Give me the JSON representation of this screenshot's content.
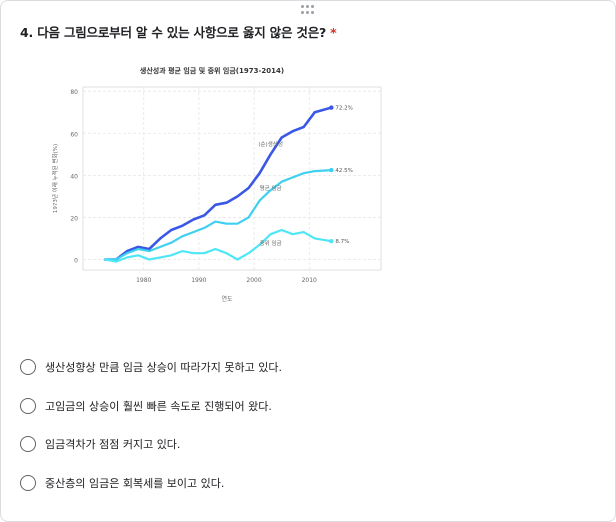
{
  "question": {
    "number_title": "4. 다음 그림으로부터 알 수 있는 사항으로 옳지 않은 것은?",
    "required_mark": "*"
  },
  "chart_data": {
    "type": "line",
    "title": "생산성과 평균 임금 및 중위 임금(1973-2014)",
    "xlabel": "연도",
    "ylabel": "1973년 이래 누적된 변화(%)",
    "xlim": [
      1969,
      2023
    ],
    "ylim": [
      -5,
      82
    ],
    "x_ticks": [
      1980,
      1990,
      2000,
      2010
    ],
    "y_ticks": [
      0,
      20,
      40,
      60,
      80
    ],
    "grid": true,
    "series": [
      {
        "name": "(순)생산성",
        "end_label": "72.2%",
        "color": "#3b57e6",
        "x": [
          1973,
          1975,
          1977,
          1979,
          1981,
          1983,
          1985,
          1987,
          1989,
          1991,
          1993,
          1995,
          1997,
          1999,
          2001,
          2003,
          2005,
          2007,
          2009,
          2011,
          2014
        ],
        "y": [
          0,
          0,
          4,
          6,
          5,
          10,
          14,
          16,
          19,
          21,
          26,
          27,
          30,
          34,
          41,
          50,
          58,
          61,
          63,
          70,
          72.2
        ]
      },
      {
        "name": "평균 임금",
        "end_label": "42.5%",
        "color": "#3fd0f0",
        "x": [
          1973,
          1975,
          1977,
          1979,
          1981,
          1983,
          1985,
          1987,
          1989,
          1991,
          1993,
          1995,
          1997,
          1999,
          2001,
          2003,
          2005,
          2007,
          2009,
          2011,
          2014
        ],
        "y": [
          0,
          0,
          3,
          5,
          4,
          6,
          8,
          11,
          13,
          15,
          18,
          17,
          17,
          20,
          28,
          33,
          37,
          39,
          41,
          42,
          42.5
        ]
      },
      {
        "name": "중위 임금",
        "end_label": "8.7%",
        "color": "#4fe6f5",
        "x": [
          1973,
          1975,
          1977,
          1979,
          1981,
          1983,
          1985,
          1987,
          1989,
          1991,
          1993,
          1995,
          1997,
          1999,
          2001,
          2003,
          2005,
          2007,
          2009,
          2011,
          2014
        ],
        "y": [
          0,
          -1,
          1,
          2,
          0,
          1,
          2,
          4,
          3,
          3,
          5,
          3,
          0,
          3,
          7,
          12,
          14,
          12,
          13,
          10,
          8.7
        ]
      }
    ]
  },
  "options": [
    {
      "label": "생산성향상 만큼 임금 상승이 따라가지 못하고 있다."
    },
    {
      "label": "고임금의 상승이 훨씬 빠른 속도로 진행되어 왔다."
    },
    {
      "label": "임금격차가 점점 커지고 있다."
    },
    {
      "label": "중산층의 임금은 회복세를 보이고 있다."
    }
  ],
  "colors": {
    "border": "#dadce0",
    "required": "#d93025",
    "radio_border": "#5f6368",
    "grid": "#e6e6e6"
  }
}
